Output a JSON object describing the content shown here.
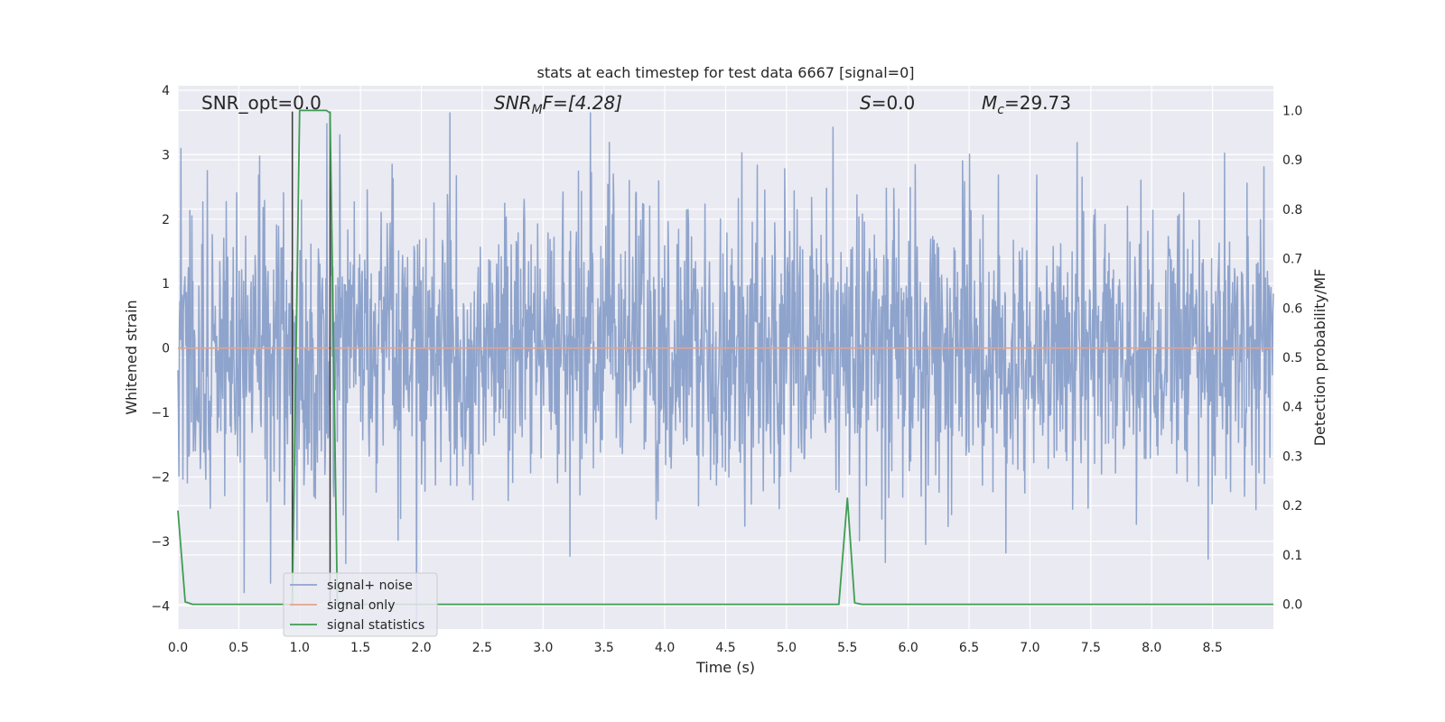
{
  "chart_data": {
    "type": "line",
    "title": "stats at each timestep for test data 6667 [signal=0]",
    "xlabel": "Time (s)",
    "ylabel_left": "Whitened strain",
    "ylabel_right": "Detection probability/MF",
    "xlim": [
      0.0,
      9.0
    ],
    "ylim_left": [
      -4.36,
      4.07
    ],
    "ylim_right": [
      -0.05,
      1.05
    ],
    "x_ticks": [
      "0.0",
      "0.5",
      "1.0",
      "1.5",
      "2.0",
      "2.5",
      "3.0",
      "3.5",
      "4.0",
      "4.5",
      "5.0",
      "5.5",
      "6.0",
      "6.5",
      "7.0",
      "7.5",
      "8.0",
      "8.5"
    ],
    "y_ticks_left": [
      "4",
      "3",
      "2",
      "1",
      "0",
      "−1",
      "−2",
      "−3",
      "−4"
    ],
    "y_ticks_right": [
      "1.0",
      "0.9",
      "0.8",
      "0.7",
      "0.6",
      "0.5",
      "0.4",
      "0.3",
      "0.2",
      "0.1",
      "0.0"
    ],
    "grid": true,
    "legend_position": "lower-left",
    "annotations": {
      "snr_opt": "SNR_opt=0.0",
      "snr_mf_main": "SNR",
      "snr_mf_sub": "M",
      "snr_mf_rest": "F=[4.28]",
      "s_main": "S",
      "s_rest": "=0.0",
      "mc_main": "M",
      "mc_sub": "c",
      "mc_rest": "=29.73"
    },
    "series": [
      {
        "name": "signal+ noise",
        "color": "#8fa4cc",
        "axis": "left",
        "description_values": "whitened noise, approx. Gaussian within [-4.3, 3.7]"
      },
      {
        "name": "signal only",
        "color": "#e3a38d",
        "axis": "left",
        "x": [
          0.0,
          9.0
        ],
        "y": [
          0.0,
          0.0
        ]
      },
      {
        "name": "signal statistics",
        "color": "#3f9d52",
        "axis": "right",
        "x": [
          0.0,
          0.06,
          0.12,
          0.9,
          0.94,
          1.0,
          1.22,
          1.25,
          1.31,
          1.37,
          5.43,
          5.5,
          5.56,
          5.62,
          9.0
        ],
        "y": [
          0.19,
          0.005,
          0.0,
          0.0,
          0.0,
          1.0,
          1.0,
          0.995,
          0.0,
          0.0,
          0.0,
          0.215,
          0.003,
          0.0,
          0.0
        ]
      }
    ],
    "vlines": [
      {
        "x": 0.94,
        "color": "#3a3a3a"
      },
      {
        "x": 1.25,
        "color": "#3a3a3a"
      }
    ]
  }
}
